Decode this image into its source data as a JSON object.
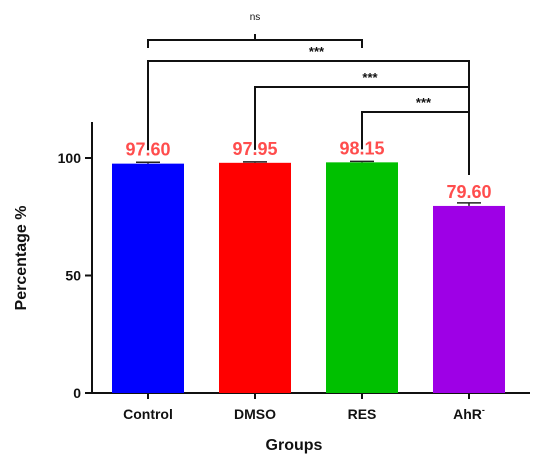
{
  "chart_data": {
    "type": "bar",
    "categories": [
      "Control",
      "DMSO",
      "RES",
      "AhR"
    ],
    "category_superscripts": [
      "",
      "",
      "",
      "-"
    ],
    "values": [
      97.6,
      97.95,
      98.15,
      79.6
    ],
    "error": [
      0.6,
      0.4,
      0.4,
      1.3
    ],
    "data_labels": [
      "97.60",
      "97.95",
      "98.15",
      "79.60"
    ],
    "colors": [
      "#0000ff",
      "#ff0000",
      "#00c000",
      "#9e00e6"
    ],
    "data_label_color": "#ff4d4d",
    "xlabel": "Groups",
    "ylabel": "Percentage %",
    "ylim": [
      0,
      100
    ],
    "yticks": [
      0,
      50,
      100
    ],
    "significance": [
      {
        "from": "Control",
        "to": "RES",
        "label": "ns"
      },
      {
        "from": "Control",
        "to": "AhR",
        "label": "***"
      },
      {
        "from": "DMSO",
        "to": "AhR",
        "label": "***"
      },
      {
        "from": "RES",
        "to": "AhR",
        "label": "***"
      }
    ]
  }
}
